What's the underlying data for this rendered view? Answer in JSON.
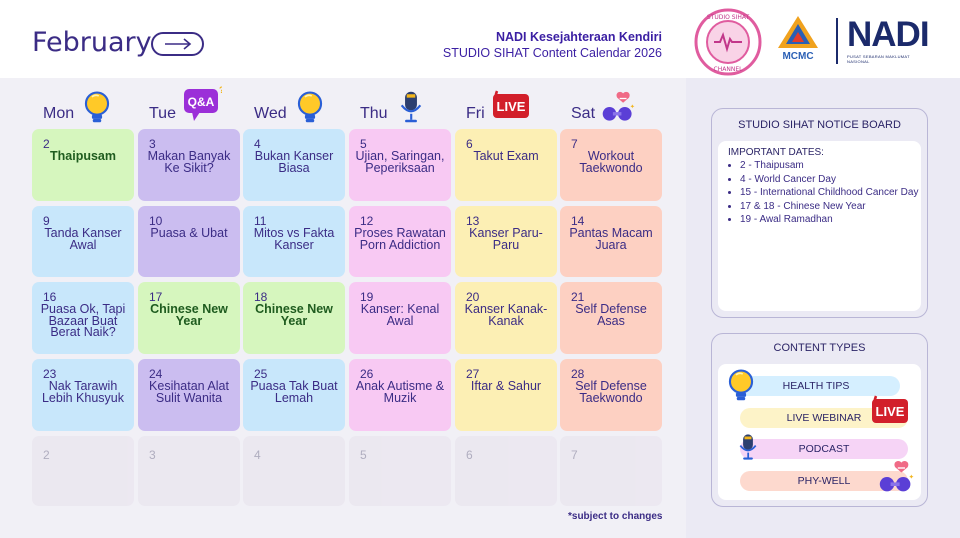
{
  "header": {
    "month": "February",
    "org": "NADI Kesejahteraan Kendiri",
    "subtitle": "STUDIO SIHAT Content Calendar 2026",
    "logos": [
      "STUDIO SIHAT CHANNEL",
      "MCMC",
      "NADI"
    ]
  },
  "days": [
    {
      "name": "Mon",
      "icon": "lightbulb-icon"
    },
    {
      "name": "Tue",
      "icon": "qa-bubble-icon",
      "badge": "Q&A"
    },
    {
      "name": "Wed",
      "icon": "lightbulb-icon"
    },
    {
      "name": "Thu",
      "icon": "microphone-icon"
    },
    {
      "name": "Fri",
      "icon": "live-icon",
      "badge": "LIVE"
    },
    {
      "name": "Sat",
      "icon": "dumbbell-heart-icon"
    }
  ],
  "weeks": [
    [
      {
        "num": "2",
        "label": "Thaipusam",
        "bold": true
      },
      {
        "num": "3",
        "label": "Makan Banyak Ke Sikit?"
      },
      {
        "num": "4",
        "label": "Bukan Kanser Biasa"
      },
      {
        "num": "5",
        "label": "Ujian, Saringan, Peperiksaan"
      },
      {
        "num": "6",
        "label": "Takut Exam"
      },
      {
        "num": "7",
        "label": "Workout Taekwondo"
      }
    ],
    [
      {
        "num": "9",
        "label": "Tanda Kanser Awal"
      },
      {
        "num": "10",
        "label": "Puasa & Ubat"
      },
      {
        "num": "11",
        "label": "Mitos vs Fakta Kanser"
      },
      {
        "num": "12",
        "label": "Proses Rawatan Porn Addiction"
      },
      {
        "num": "13",
        "label": "Kanser Paru-Paru"
      },
      {
        "num": "14",
        "label": "Pantas Macam Juara"
      }
    ],
    [
      {
        "num": "16",
        "label": "Puasa Ok, Tapi Bazaar Buat Berat Naik?"
      },
      {
        "num": "17",
        "label": "Chinese New Year",
        "bold": true
      },
      {
        "num": "18",
        "label": "Chinese New Year",
        "bold": true
      },
      {
        "num": "19",
        "label": "Kanser: Kenal Awal"
      },
      {
        "num": "20",
        "label": "Kanser Kanak-Kanak"
      },
      {
        "num": "21",
        "label": "Self Defense Asas"
      }
    ],
    [
      {
        "num": "23",
        "label": "Nak Tarawih Lebih Khusyuk"
      },
      {
        "num": "24",
        "label": "Kesihatan Alat Sulit Wanita"
      },
      {
        "num": "25",
        "label": "Puasa Tak Buat Lemah"
      },
      {
        "num": "26",
        "label": "Anak Autisme & Muzik"
      },
      {
        "num": "27",
        "label": "Iftar & Sahur"
      },
      {
        "num": "28",
        "label": "Self Defense Taekwondo"
      }
    ],
    [
      {
        "num": "2",
        "label": ""
      },
      {
        "num": "3",
        "label": ""
      },
      {
        "num": "4",
        "label": ""
      },
      {
        "num": "5",
        "label": ""
      },
      {
        "num": "6",
        "label": ""
      },
      {
        "num": "7",
        "label": ""
      }
    ]
  ],
  "note": "*subject to changes",
  "notice_board": {
    "title": "STUDIO SIHAT NOTICE BOARD",
    "heading": "IMPORTANT DATES:",
    "items": [
      "2 - Thaipusam",
      "4 - World Cancer Day",
      "15 - International Childhood Cancer Day",
      "17 & 18 - Chinese New Year",
      "19 - Awal Ramadhan"
    ]
  },
  "content_types": {
    "title": "CONTENT TYPES",
    "items": [
      {
        "label": "HEALTH TIPS",
        "color": "#d5efff",
        "icon": "lightbulb-icon"
      },
      {
        "label": "LIVE WEBINAR",
        "color": "#fdf3c8",
        "icon": "live-icon"
      },
      {
        "label": "PODCAST",
        "color": "#f6d4f6",
        "icon": "microphone-icon"
      },
      {
        "label": "PHY-WELL",
        "color": "#fdd9ce",
        "icon": "dumbbell-heart-icon"
      }
    ]
  },
  "colors": {
    "text": "#3b2c85",
    "mon": "#c8e7fb",
    "tue": "#cbbdf0",
    "wed": "#c8e7fb",
    "thu": "#f8c9f3",
    "fri": "#fcefb4",
    "sat": "#fdd0c2",
    "holiday": "#d6f6be",
    "faded": "#eae6ef"
  }
}
